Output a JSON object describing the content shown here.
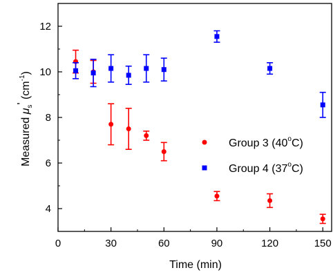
{
  "chart_data": {
    "type": "scatter",
    "title": "",
    "xlabel": "Time (min)",
    "ylabel": {
      "prefix": "Measured ",
      "symbol": "μ",
      "subscript": "s",
      "prime": "'",
      "unit_open": " (cm",
      "unit_exp": "-1",
      "unit_close": ")"
    },
    "xlim": [
      0,
      155
    ],
    "ylim": [
      3,
      13
    ],
    "xticks": [
      0,
      30,
      60,
      90,
      120,
      150
    ],
    "yticks": [
      4,
      6,
      8,
      10,
      12
    ],
    "grid": false,
    "legend_position": "right",
    "series": [
      {
        "name": "Group 3 (40°C)",
        "legend_prefix": "Group 3 (40",
        "legend_suffix": "C)",
        "marker": "circle",
        "color": "#ff0000",
        "x": [
          10,
          20,
          30,
          40,
          50,
          60,
          90,
          120,
          150
        ],
        "y": [
          10.45,
          10.0,
          7.7,
          7.5,
          7.2,
          6.5,
          4.55,
          4.35,
          3.55
        ],
        "err": [
          0.5,
          0.5,
          0.9,
          0.9,
          0.2,
          0.4,
          0.2,
          0.3,
          0.2
        ]
      },
      {
        "name": "Group 4 (37°C)",
        "legend_prefix": "Group 4 (37",
        "legend_suffix": "C)",
        "marker": "square",
        "color": "#0000ff",
        "x": [
          10,
          20,
          30,
          40,
          50,
          60,
          90,
          120,
          150
        ],
        "y": [
          10.05,
          9.95,
          10.15,
          9.85,
          10.15,
          10.1,
          11.55,
          10.15,
          8.55
        ],
        "err": [
          0.35,
          0.6,
          0.6,
          0.4,
          0.6,
          0.5,
          0.25,
          0.25,
          0.55
        ]
      }
    ]
  }
}
